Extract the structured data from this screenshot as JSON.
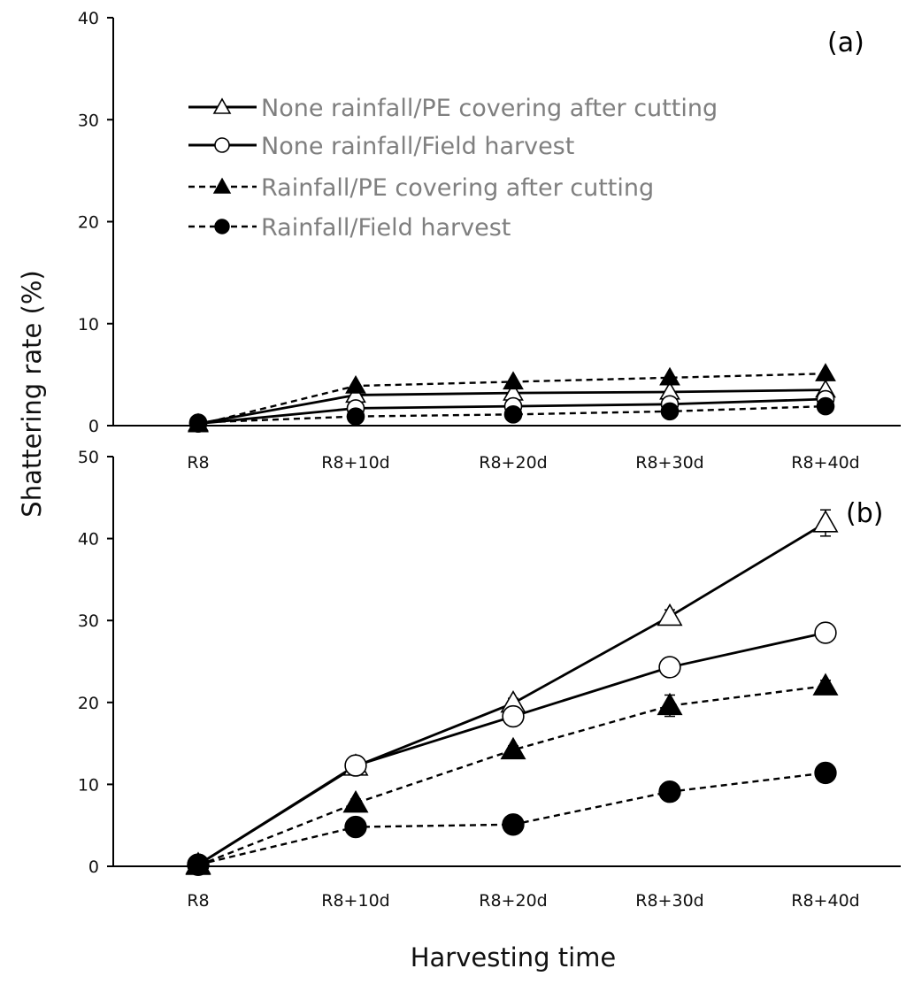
{
  "chart_data": [
    {
      "type": "line",
      "panel": "top",
      "panel_label": "(a)",
      "ylim": [
        0,
        40
      ],
      "yticks": [
        0,
        10,
        20,
        30,
        40
      ],
      "categories": [
        "R8",
        "R8+10d",
        "R8+20d",
        "R8+30d",
        "R8+40d"
      ],
      "series": [
        {
          "name": "None rainfall/PE covering after cutting",
          "values": [
            0.2,
            3.0,
            3.2,
            3.3,
            3.5
          ]
        },
        {
          "name": "None rainfall/Field harvest",
          "values": [
            0.2,
            1.7,
            1.9,
            2.1,
            2.6
          ]
        },
        {
          "name": "Rainfall/PE covering after cutting",
          "values": [
            0.1,
            3.9,
            4.3,
            4.7,
            5.1
          ]
        },
        {
          "name": "Rainfall/Field harvest",
          "values": [
            0.3,
            0.9,
            1.1,
            1.4,
            1.9
          ]
        }
      ]
    },
    {
      "type": "line",
      "panel": "bottom",
      "panel_label": "(b)",
      "ylim": [
        0,
        50
      ],
      "yticks": [
        0,
        10,
        20,
        30,
        40,
        50
      ],
      "categories": [
        "R8",
        "R8+10d",
        "R8+20d",
        "R8+30d",
        "R8+40d"
      ],
      "series": [
        {
          "name": "None rainfall/PE covering after cutting",
          "values": [
            0.2,
            12.2,
            19.9,
            30.5,
            41.9
          ],
          "errors": [
            0,
            0.5,
            0.6,
            0.8,
            1.6
          ]
        },
        {
          "name": "None rainfall/Field harvest",
          "values": [
            0.2,
            12.3,
            18.3,
            24.3,
            28.5
          ],
          "errors": [
            0,
            0.4,
            0.5,
            0.6,
            0.5
          ]
        },
        {
          "name": "Rainfall/PE covering after cutting",
          "values": [
            0.1,
            7.7,
            14.2,
            19.6,
            22.0
          ],
          "errors": [
            0,
            0.5,
            0.5,
            1.3,
            0.7
          ]
        },
        {
          "name": "Rainfall/Field harvest",
          "values": [
            0.2,
            4.8,
            5.1,
            9.1,
            11.4
          ],
          "errors": [
            0,
            0.3,
            0.3,
            0.4,
            0.5
          ]
        }
      ]
    }
  ],
  "legend": [
    {
      "label": "None rainfall/PE covering after cutting",
      "marker": "triangle-open",
      "line": "solid"
    },
    {
      "label": "None rainfall/Field harvest",
      "marker": "circle-open",
      "line": "solid"
    },
    {
      "label": "Rainfall/PE covering after cutting",
      "marker": "triangle-filled",
      "line": "dashed"
    },
    {
      "label": "Rainfall/Field harvest",
      "marker": "circle-filled",
      "line": "dashed"
    }
  ],
  "ylabel": "Shattering rate (%)",
  "xlabel": "Harvesting time"
}
